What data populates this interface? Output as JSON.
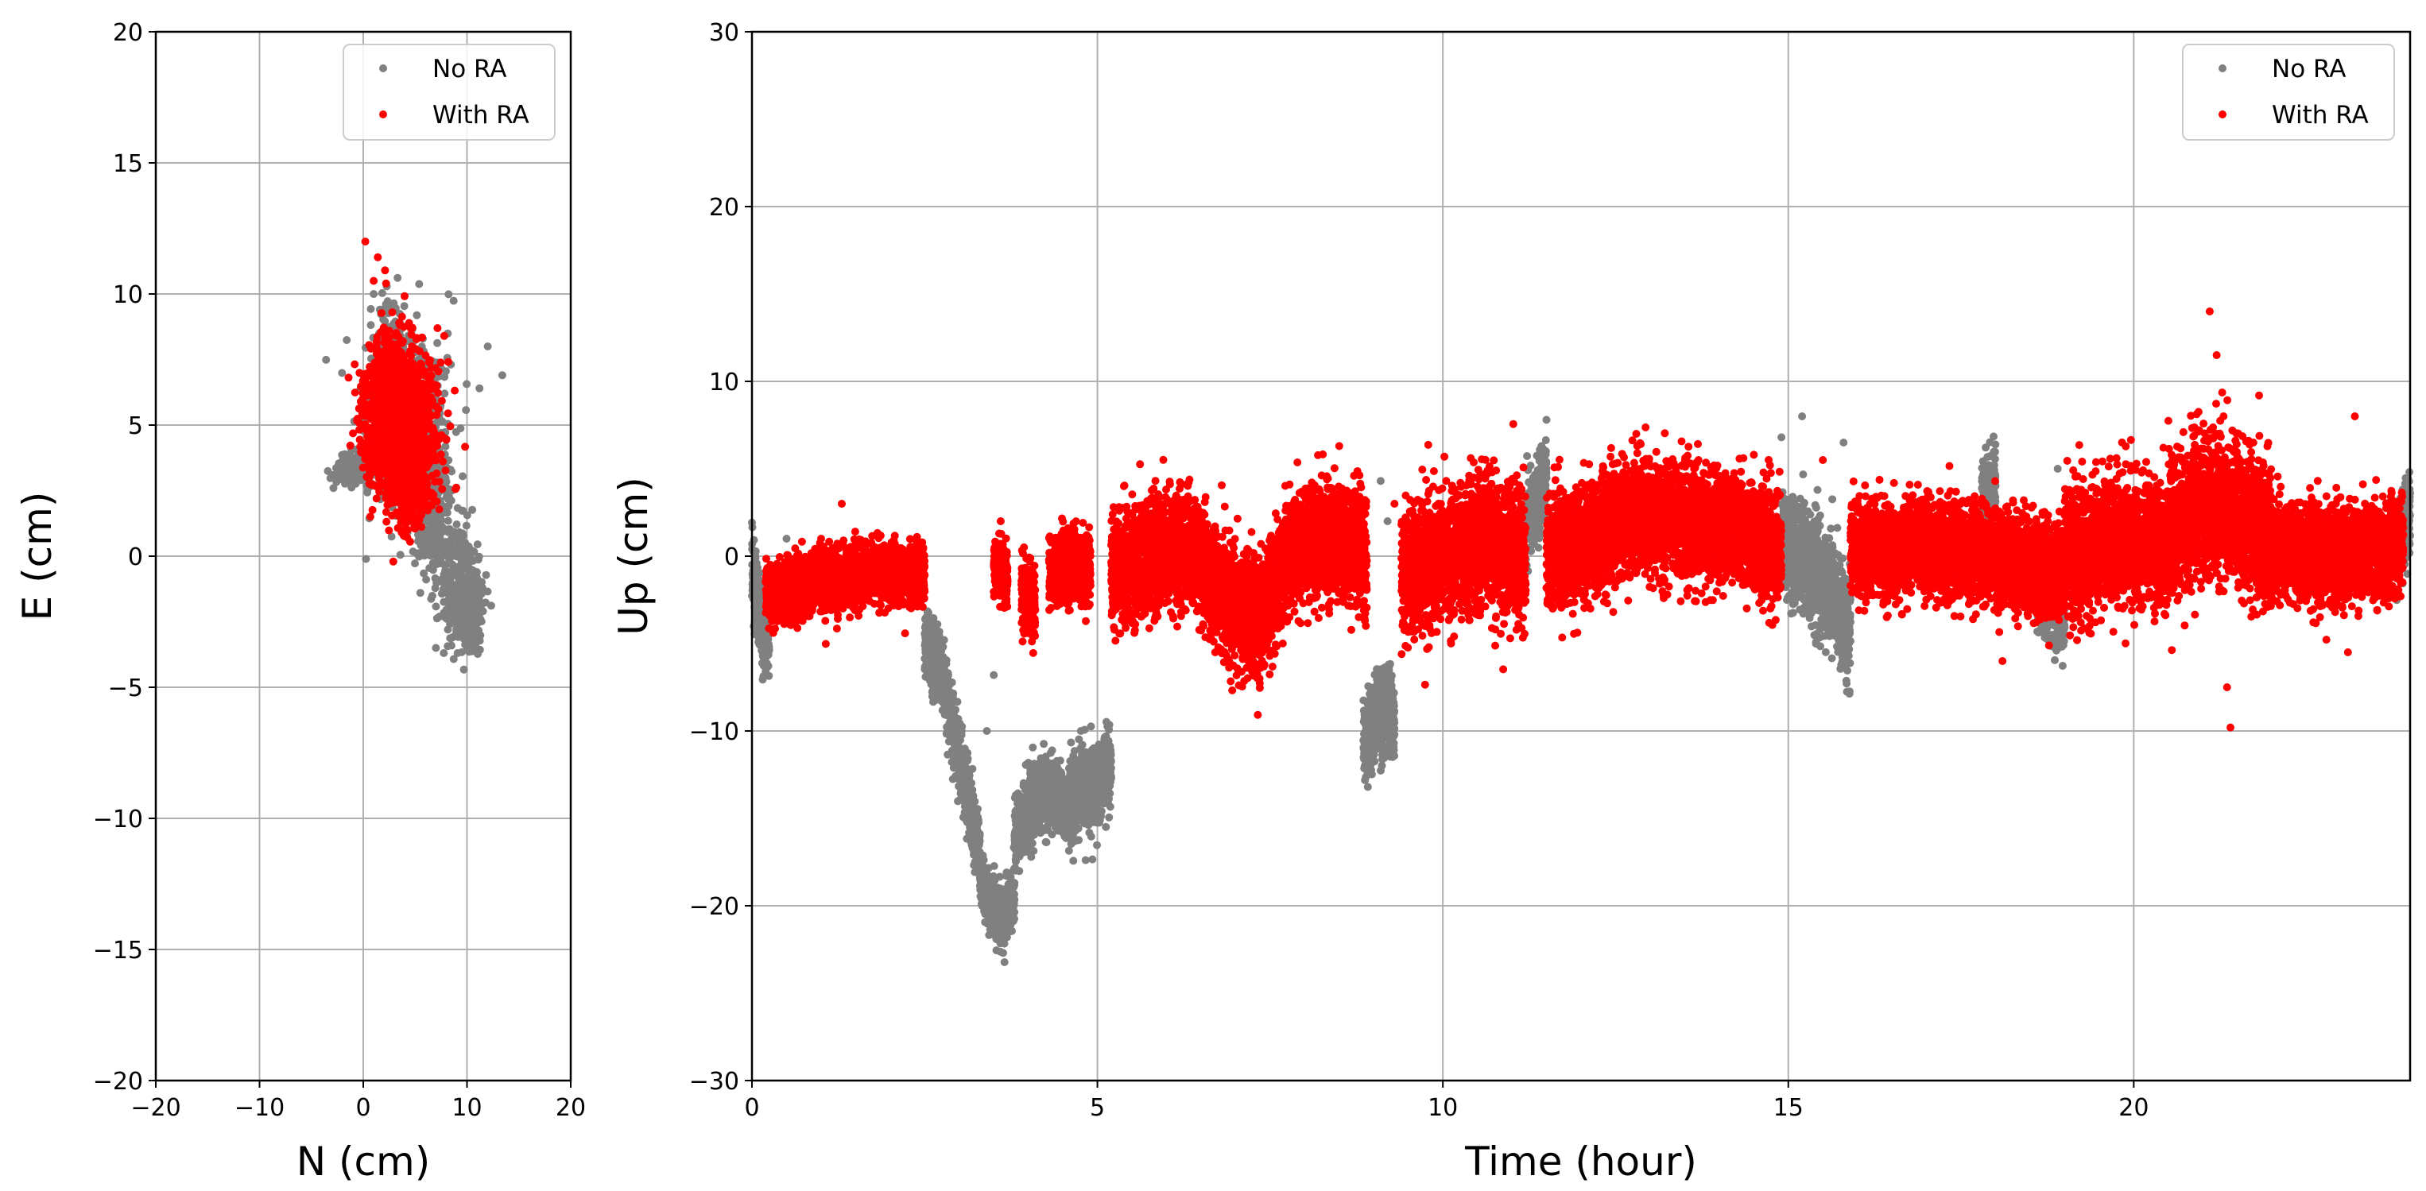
{
  "colors": {
    "no_ra": "#808080",
    "with_ra": "#ff0000",
    "grid": "#b0b0b0",
    "axis": "#000000"
  },
  "chart_data": [
    {
      "type": "scatter",
      "title": "",
      "xlabel": "N (cm)",
      "ylabel": "E (cm)",
      "xlim": [
        -20,
        20
      ],
      "ylim": [
        -20,
        20
      ],
      "xticks": [
        -20,
        -10,
        0,
        10,
        20
      ],
      "yticks": [
        -20,
        -15,
        -10,
        -5,
        0,
        5,
        10,
        15,
        20
      ],
      "xtick_labels": [
        "−20",
        "−10",
        "0",
        "10",
        "20"
      ],
      "ytick_labels": [
        "−20",
        "−15",
        "−10",
        "−5",
        "0",
        "5",
        "10",
        "15",
        "20"
      ],
      "grid": true,
      "legend": {
        "placement": "top-right",
        "entries": [
          "No RA",
          "With RA"
        ]
      },
      "series": [
        {
          "name": "No RA",
          "color": "#808080",
          "clusters": [
            {
              "cx": 4.0,
              "cy": 5.0,
              "sx": 1.9,
              "sy": 1.7,
              "n": 700
            },
            {
              "cx": -0.8,
              "cy": 3.3,
              "sx": 0.9,
              "sy": 0.35,
              "n": 150
            },
            {
              "cx": 6.8,
              "cy": 1.8,
              "sx": 0.9,
              "sy": 1.4,
              "n": 250
            },
            {
              "cx": 9.0,
              "cy": -0.8,
              "sx": 1.0,
              "sy": 1.2,
              "n": 260
            },
            {
              "cx": 10.3,
              "cy": -2.2,
              "sx": 0.6,
              "sy": 0.8,
              "n": 220
            },
            {
              "cx": 2.5,
              "cy": 8.5,
              "sx": 0.6,
              "sy": 0.9,
              "n": 60
            }
          ],
          "outliers": [
            [
              12.0,
              8.0
            ],
            [
              13.4,
              6.9
            ],
            [
              11.2,
              6.4
            ],
            [
              7.0,
              -3.5
            ],
            [
              5.5,
              -1.4
            ],
            [
              1.0,
              10.0
            ],
            [
              1.6,
              9.4
            ]
          ]
        },
        {
          "name": "With RA",
          "color": "#ff0000",
          "clusters": [
            {
              "cx": 3.5,
              "cy": 5.0,
              "sx": 1.6,
              "sy": 1.3,
              "n": 1600
            },
            {
              "cx": 4.5,
              "cy": 3.0,
              "sx": 1.0,
              "sy": 1.0,
              "n": 300
            },
            {
              "cx": 2.5,
              "cy": 7.2,
              "sx": 0.8,
              "sy": 0.7,
              "n": 120
            }
          ],
          "outliers": [
            [
              0.2,
              12.0
            ],
            [
              1.4,
              11.4
            ],
            [
              2.1,
              10.9
            ],
            [
              2.2,
              10.4
            ],
            [
              1.0,
              10.5
            ],
            [
              2.8,
              9.3
            ],
            [
              7.8,
              8.4
            ],
            [
              4.7,
              8.0
            ],
            [
              4.3,
              1.0
            ],
            [
              3.7,
              0.9
            ]
          ]
        }
      ]
    },
    {
      "type": "scatter",
      "title": "",
      "xlabel": "Time (hour)",
      "ylabel": "Up (cm)",
      "xlim": [
        0,
        24
      ],
      "ylim": [
        -30,
        30
      ],
      "xticks": [
        0,
        5,
        10,
        15,
        20
      ],
      "yticks": [
        -30,
        -20,
        -10,
        0,
        10,
        20,
        30
      ],
      "xtick_labels": [
        "0",
        "5",
        "10",
        "15",
        "20"
      ],
      "ytick_labels": [
        "−30",
        "−20",
        "−10",
        "0",
        "10",
        "20",
        "30"
      ],
      "grid": true,
      "legend": {
        "placement": "top-right",
        "entries": [
          "No RA",
          "With RA"
        ]
      },
      "series": [
        {
          "name": "No RA",
          "color": "#808080",
          "segments": [
            {
              "t0": 0.0,
              "t1": 0.25,
              "y": [
                -1.0,
                -3.5,
                -4.5
              ],
              "noise": 1.2
            },
            {
              "t0": 2.5,
              "t1": 3.3,
              "y": [
                -5.0,
                -7.0,
                -12.0,
                -17.0
              ],
              "noise": 1.0
            },
            {
              "t0": 3.3,
              "t1": 3.8,
              "y": [
                -18.5,
                -20.0,
                -20.5,
                -19.5
              ],
              "noise": 0.8
            },
            {
              "t0": 3.8,
              "t1": 4.6,
              "y": [
                -16.0,
                -14.0,
                -13.5,
                -14.5
              ],
              "noise": 1.0
            },
            {
              "t0": 4.6,
              "t1": 5.2,
              "y": [
                -14.0,
                -13.0,
                -12.0
              ],
              "noise": 1.2
            },
            {
              "t0": 8.85,
              "t1": 9.3,
              "y": [
                -11.0,
                -9.5,
                -8.5,
                -9.5
              ],
              "noise": 1.2
            },
            {
              "t0": 11.2,
              "t1": 11.5,
              "y": [
                2.0,
                3.0,
                5.0
              ],
              "noise": 1.0
            },
            {
              "t0": 14.9,
              "t1": 15.9,
              "y": [
                1.0,
                0.0,
                -2.0,
                -4.5
              ],
              "noise": 1.5
            },
            {
              "t0": 17.8,
              "t1": 18.0,
              "y": [
                3.0,
                4.0
              ],
              "noise": 1.0
            },
            {
              "t0": 18.6,
              "t1": 19.0,
              "y": [
                -2.0,
                -3.0
              ],
              "noise": 1.2
            },
            {
              "t0": 23.8,
              "t1": 24.0,
              "y": [
                1.0,
                2.0
              ],
              "noise": 1.2
            }
          ],
          "outliers": [
            [
              0.5,
              1.0
            ],
            [
              3.5,
              -6.8
            ],
            [
              3.4,
              -10.0
            ],
            [
              9.1,
              4.3
            ],
            [
              9.2,
              2.0
            ],
            [
              11.5,
              7.8
            ],
            [
              14.9,
              6.8
            ],
            [
              15.2,
              8.0
            ],
            [
              15.8,
              6.5
            ],
            [
              18.9,
              5.0
            ]
          ]
        },
        {
          "name": "With RA",
          "color": "#ff0000",
          "segments": [
            {
              "t0": 0.2,
              "t1": 2.5,
              "y": [
                -2.0,
                -1.5,
                -1.0,
                -1.0
              ],
              "noise": 0.8
            },
            {
              "t0": 3.5,
              "t1": 3.7,
              "y": [
                -0.5,
                -1.0
              ],
              "noise": 0.8
            },
            {
              "t0": 3.9,
              "t1": 4.1,
              "y": [
                -2.0,
                -3.0
              ],
              "noise": 1.0
            },
            {
              "t0": 4.3,
              "t1": 4.9,
              "y": [
                -1.0,
                -0.5,
                -1.0
              ],
              "noise": 1.0
            },
            {
              "t0": 5.2,
              "t1": 8.9,
              "y": [
                -1.0,
                0.0,
                0.5,
                -2.0,
                -4.0,
                0.5,
                1.0,
                0.0
              ],
              "noise": 1.6
            },
            {
              "t0": 9.4,
              "t1": 11.2,
              "y": [
                -1.0,
                0.0,
                1.0,
                0.0
              ],
              "noise": 1.8
            },
            {
              "t0": 11.5,
              "t1": 14.9,
              "y": [
                0.0,
                1.0,
                2.5,
                2.0,
                1.5,
                0.5
              ],
              "noise": 1.6
            },
            {
              "t0": 15.9,
              "t1": 19.0,
              "y": [
                0.5,
                0.5,
                0.0,
                -1.0
              ],
              "noise": 1.3
            },
            {
              "t0": 19.0,
              "t1": 20.5,
              "y": [
                0.0,
                1.0,
                0.5
              ],
              "noise": 1.8
            },
            {
              "t0": 20.5,
              "t1": 22.0,
              "y": [
                1.5,
                3.0,
                2.5,
                1.0
              ],
              "noise": 2.0
            },
            {
              "t0": 22.0,
              "t1": 23.9,
              "y": [
                0.5,
                0.0,
                0.5
              ],
              "noise": 1.3
            }
          ],
          "outliers": [
            [
              1.3,
              3.0
            ],
            [
              3.6,
              2.0
            ],
            [
              8.5,
              6.3
            ],
            [
              9.3,
              3.0
            ],
            [
              12.8,
              7.0
            ],
            [
              15.5,
              5.5
            ],
            [
              18.1,
              -6.0
            ],
            [
              21.1,
              14.0
            ],
            [
              21.2,
              11.5
            ],
            [
              21.3,
              8.0
            ],
            [
              21.4,
              -9.8
            ],
            [
              21.35,
              -7.5
            ],
            [
              23.2,
              8.0
            ],
            [
              23.1,
              -5.5
            ],
            [
              21.2,
              7.0
            ]
          ]
        }
      ]
    }
  ]
}
